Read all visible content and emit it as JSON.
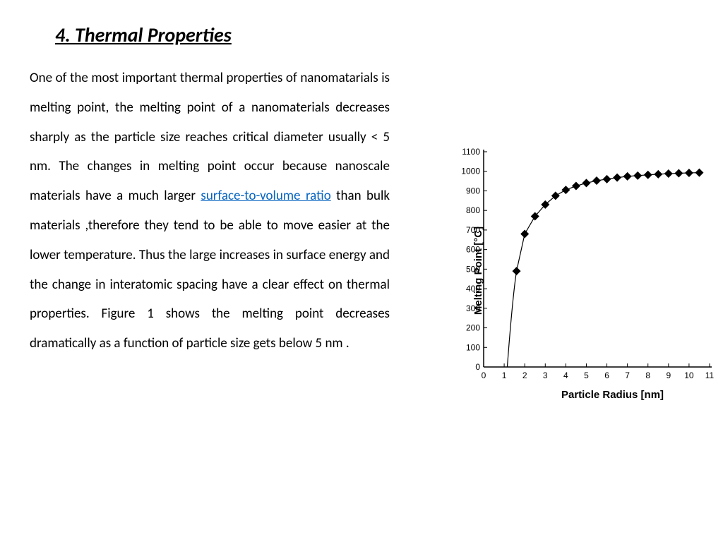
{
  "heading": "4. Thermal Properties",
  "body": {
    "p1a": "One of the most important thermal properties of nanomatarials is melting point,  the melting point of a nanomaterials decreases sharply as the particle size reaches critical diameter usually < 5 nm. The changes in melting point occur because nanoscale materials have a much larger ",
    "link": "surface-to-volume ratio",
    "p1b": " than bulk materials ,therefore they tend to be able to move easier at the lower temperature. Thus the large increases in surface energy and the change in interatomic spacing have a clear effect on thermal properties. Figure 1 shows the melting point decreases dramatically as a function of particle size gets below 5 nm ."
  },
  "chart": {
    "type": "scatter-line",
    "xlabel": "Particle Radius [nm]",
    "ylabel": "Melting Point [°C]",
    "xlim": [
      0,
      11
    ],
    "ylim": [
      0,
      1100
    ],
    "xticks": [
      0,
      1,
      2,
      3,
      4,
      5,
      6,
      7,
      8,
      9,
      10,
      11
    ],
    "yticks": [
      0,
      100,
      200,
      300,
      400,
      500,
      600,
      700,
      800,
      900,
      1000,
      1100
    ],
    "tick_fontsize": 12,
    "label_fontsize": 15,
    "label_fontweight": "bold",
    "marker": "diamond",
    "marker_size": 6,
    "marker_color": "#000000",
    "line_color": "#000000",
    "line_width": 1.2,
    "background_color": "#ffffff",
    "axis_color": "#000000",
    "data": [
      [
        1.6,
        490
      ],
      [
        2.0,
        680
      ],
      [
        2.5,
        770
      ],
      [
        3.0,
        830
      ],
      [
        3.5,
        875
      ],
      [
        4.0,
        905
      ],
      [
        4.5,
        925
      ],
      [
        5.0,
        940
      ],
      [
        5.5,
        952
      ],
      [
        6.0,
        960
      ],
      [
        6.5,
        968
      ],
      [
        7.0,
        974
      ],
      [
        7.5,
        978
      ],
      [
        8.0,
        982
      ],
      [
        8.5,
        985
      ],
      [
        9.0,
        988
      ],
      [
        9.5,
        990
      ],
      [
        10.0,
        992
      ],
      [
        10.5,
        993
      ]
    ],
    "curve_start": [
      1.15,
      0
    ]
  }
}
